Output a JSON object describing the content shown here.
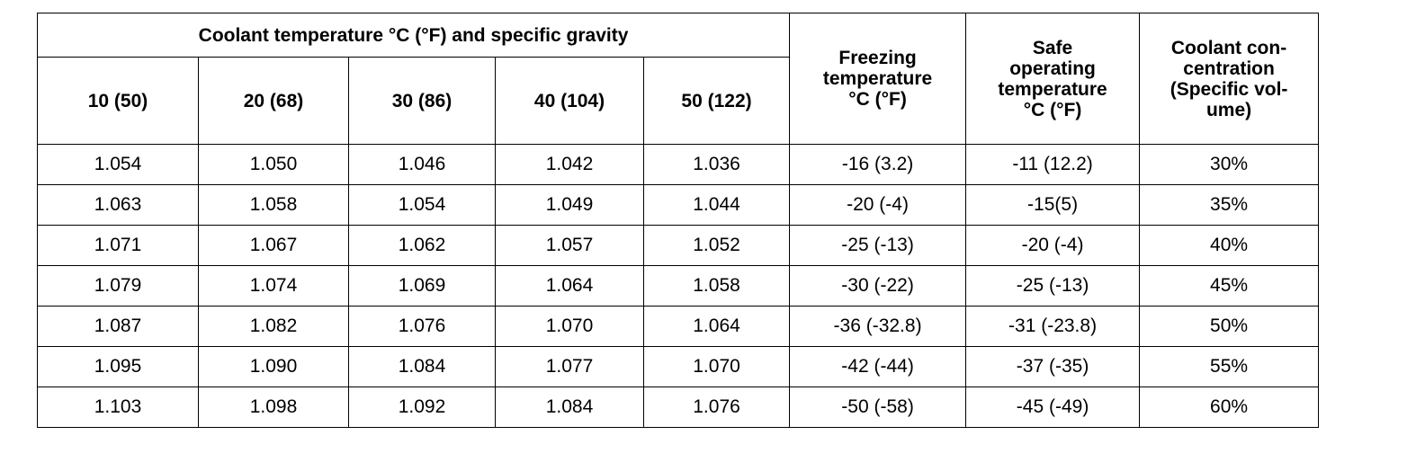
{
  "table": {
    "group_header": "Coolant temperature °C (°F) and specific gravity",
    "temp_columns": [
      "10 (50)",
      "20 (68)",
      "30 (86)",
      "40 (104)",
      "50 (122)"
    ],
    "freezing_header": [
      "Freezing",
      "temperature",
      "°C (°F)"
    ],
    "safe_header": [
      "Safe",
      "operating",
      "temperature",
      "°C (°F)"
    ],
    "concentration_header": [
      "Coolant con-",
      "centration",
      "(Specific vol-",
      "ume)"
    ],
    "rows": [
      [
        "1.054",
        "1.050",
        "1.046",
        "1.042",
        "1.036",
        "-16 (3.2)",
        "-11 (12.2)",
        "30%"
      ],
      [
        "1.063",
        "1.058",
        "1.054",
        "1.049",
        "1.044",
        "-20 (-4)",
        "-15(5)",
        "35%"
      ],
      [
        "1.071",
        "1.067",
        "1.062",
        "1.057",
        "1.052",
        "-25 (-13)",
        "-20 (-4)",
        "40%"
      ],
      [
        "1.079",
        "1.074",
        "1.069",
        "1.064",
        "1.058",
        "-30 (-22)",
        "-25 (-13)",
        "45%"
      ],
      [
        "1.087",
        "1.082",
        "1.076",
        "1.070",
        "1.064",
        "-36 (-32.8)",
        "-31 (-23.8)",
        "50%"
      ],
      [
        "1.095",
        "1.090",
        "1.084",
        "1.077",
        "1.070",
        "-42 (-44)",
        "-37 (-35)",
        "55%"
      ],
      [
        "1.103",
        "1.098",
        "1.092",
        "1.084",
        "1.076",
        "-50 (-58)",
        "-45 (-49)",
        "60%"
      ]
    ]
  }
}
